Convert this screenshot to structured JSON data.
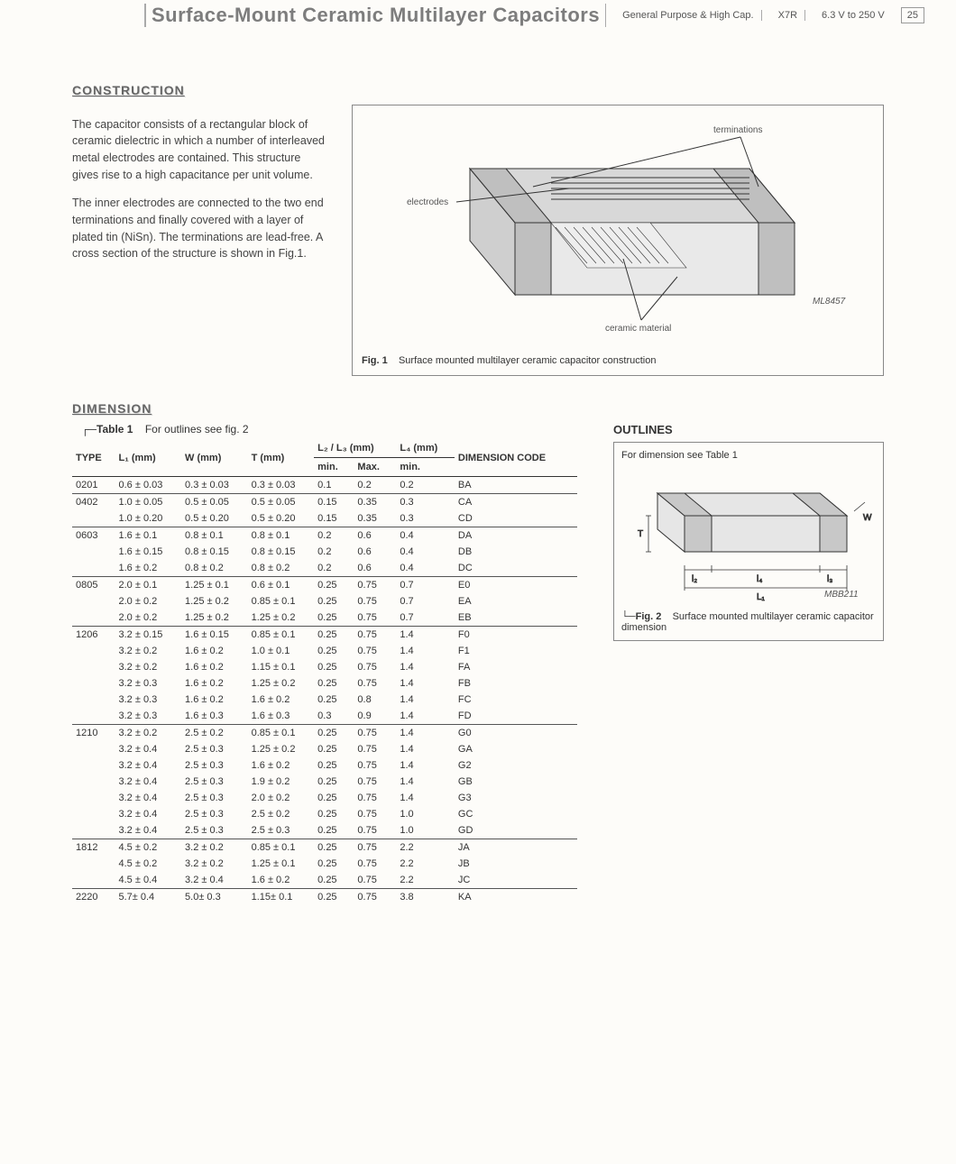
{
  "header": {
    "title": "Surface-Mount Ceramic Multilayer Capacitors",
    "category": "General Purpose & High Cap.",
    "dielectric": "X7R",
    "voltage": "6.3 V to 250 V",
    "page": "25"
  },
  "construction": {
    "heading": "CONSTRUCTION",
    "para1": "The capacitor consists of a rectangular block of ceramic dielectric in which a number of interleaved metal electrodes are contained. This structure gives rise to a high capacitance per unit volume.",
    "para2": "The inner electrodes are connected to the two end terminations and finally covered with a layer of plated tin (NiSn). The terminations are lead-free. A cross section of the structure is shown in Fig.1.",
    "fig_label": "Fig. 1",
    "fig_caption": "Surface mounted multilayer ceramic capacitor construction",
    "lbl_terminations": "terminations",
    "lbl_electrodes": "electrodes",
    "lbl_ceramic": "ceramic material",
    "code": "ML8457"
  },
  "dimension": {
    "heading": "DIMENSION",
    "table_caption_label": "Table 1",
    "table_caption_text": "For outlines see fig. 2",
    "outlines_heading": "OUTLINES",
    "fig2_note": "For dimension see Table 1",
    "fig2_label": "Fig. 2",
    "fig2_caption": "Surface mounted multilayer ceramic capacitor dimension",
    "fig2_code": "MBB211",
    "columns": {
      "type": "TYPE",
      "l1": "L₁ (mm)",
      "w": "W (mm)",
      "t": "T (mm)",
      "l23": "L₂ / L₃ (mm)",
      "l23_min": "min.",
      "l23_max": "Max.",
      "l4": "L₄ (mm)",
      "l4_min": "min.",
      "code": "DIMENSION CODE"
    },
    "rows": [
      {
        "type": "0201",
        "l1": "0.6 ± 0.03",
        "w": "0.3 ± 0.03",
        "t": "0.3 ± 0.03",
        "min": "0.1",
        "max": "0.2",
        "l4": "0.2",
        "code": "BA",
        "group": true
      },
      {
        "type": "0402",
        "l1": "1.0 ± 0.05",
        "w": "0.5 ± 0.05",
        "t": "0.5 ± 0.05",
        "min": "0.15",
        "max": "0.35",
        "l4": "0.3",
        "code": "CA",
        "group": true
      },
      {
        "type": "",
        "l1": "1.0 ± 0.20",
        "w": "0.5 ± 0.20",
        "t": "0.5 ± 0.20",
        "min": "0.15",
        "max": "0.35",
        "l4": "0.3",
        "code": "CD"
      },
      {
        "type": "0603",
        "l1": "1.6 ± 0.1",
        "w": "0.8 ± 0.1",
        "t": "0.8 ± 0.1",
        "min": "0.2",
        "max": "0.6",
        "l4": "0.4",
        "code": "DA",
        "group": true
      },
      {
        "type": "",
        "l1": "1.6 ± 0.15",
        "w": "0.8 ± 0.15",
        "t": "0.8 ± 0.15",
        "min": "0.2",
        "max": "0.6",
        "l4": "0.4",
        "code": "DB"
      },
      {
        "type": "",
        "l1": "1.6 ± 0.2",
        "w": "0.8 ± 0.2",
        "t": "0.8 ± 0.2",
        "min": "0.2",
        "max": "0.6",
        "l4": "0.4",
        "code": "DC"
      },
      {
        "type": "0805",
        "l1": "2.0 ± 0.1",
        "w": "1.25 ± 0.1",
        "t": "0.6 ± 0.1",
        "min": "0.25",
        "max": "0.75",
        "l4": "0.7",
        "code": "E0",
        "group": true
      },
      {
        "type": "",
        "l1": "2.0 ± 0.2",
        "w": "1.25 ± 0.2",
        "t": "0.85 ± 0.1",
        "min": "0.25",
        "max": "0.75",
        "l4": "0.7",
        "code": "EA"
      },
      {
        "type": "",
        "l1": "2.0 ± 0.2",
        "w": "1.25 ± 0.2",
        "t": "1.25 ± 0.2",
        "min": "0.25",
        "max": "0.75",
        "l4": "0.7",
        "code": "EB"
      },
      {
        "type": "1206",
        "l1": "3.2 ± 0.15",
        "w": "1.6 ± 0.15",
        "t": "0.85 ± 0.1",
        "min": "0.25",
        "max": "0.75",
        "l4": "1.4",
        "code": "F0",
        "group": true
      },
      {
        "type": "",
        "l1": "3.2 ± 0.2",
        "w": "1.6 ± 0.2",
        "t": "1.0 ± 0.1",
        "min": "0.25",
        "max": "0.75",
        "l4": "1.4",
        "code": "F1"
      },
      {
        "type": "",
        "l1": "3.2 ± 0.2",
        "w": "1.6 ± 0.2",
        "t": "1.15 ± 0.1",
        "min": "0.25",
        "max": "0.75",
        "l4": "1.4",
        "code": "FA"
      },
      {
        "type": "",
        "l1": "3.2 ± 0.3",
        "w": "1.6 ± 0.2",
        "t": "1.25 ± 0.2",
        "min": "0.25",
        "max": "0.75",
        "l4": "1.4",
        "code": "FB"
      },
      {
        "type": "",
        "l1": "3.2 ± 0.3",
        "w": "1.6 ± 0.2",
        "t": "1.6 ± 0.2",
        "min": "0.25",
        "max": "0.8",
        "l4": "1.4",
        "code": "FC"
      },
      {
        "type": "",
        "l1": "3.2 ± 0.3",
        "w": "1.6 ± 0.3",
        "t": "1.6 ± 0.3",
        "min": "0.3",
        "max": "0.9",
        "l4": "1.4",
        "code": "FD"
      },
      {
        "type": "1210",
        "l1": "3.2 ± 0.2",
        "w": "2.5 ± 0.2",
        "t": "0.85 ± 0.1",
        "min": "0.25",
        "max": "0.75",
        "l4": "1.4",
        "code": "G0",
        "group": true
      },
      {
        "type": "",
        "l1": "3.2 ± 0.4",
        "w": "2.5 ± 0.3",
        "t": "1.25 ± 0.2",
        "min": "0.25",
        "max": "0.75",
        "l4": "1.4",
        "code": "GA"
      },
      {
        "type": "",
        "l1": "3.2 ± 0.4",
        "w": "2.5 ± 0.3",
        "t": "1.6 ± 0.2",
        "min": "0.25",
        "max": "0.75",
        "l4": "1.4",
        "code": "G2"
      },
      {
        "type": "",
        "l1": "3.2 ± 0.4",
        "w": "2.5 ± 0.3",
        "t": "1.9 ± 0.2",
        "min": "0.25",
        "max": "0.75",
        "l4": "1.4",
        "code": "GB"
      },
      {
        "type": "",
        "l1": "3.2 ± 0.4",
        "w": "2.5 ± 0.3",
        "t": "2.0 ± 0.2",
        "min": "0.25",
        "max": "0.75",
        "l4": "1.4",
        "code": "G3"
      },
      {
        "type": "",
        "l1": "3.2 ± 0.4",
        "w": "2.5 ± 0.3",
        "t": "2.5 ± 0.2",
        "min": "0.25",
        "max": "0.75",
        "l4": "1.0",
        "code": "GC"
      },
      {
        "type": "",
        "l1": "3.2 ± 0.4",
        "w": "2.5 ± 0.3",
        "t": "2.5 ± 0.3",
        "min": "0.25",
        "max": "0.75",
        "l4": "1.0",
        "code": "GD"
      },
      {
        "type": "1812",
        "l1": "4.5 ± 0.2",
        "w": "3.2 ± 0.2",
        "t": "0.85 ± 0.1",
        "min": "0.25",
        "max": "0.75",
        "l4": "2.2",
        "code": "JA",
        "group": true
      },
      {
        "type": "",
        "l1": "4.5 ± 0.2",
        "w": "3.2 ± 0.2",
        "t": "1.25 ± 0.1",
        "min": "0.25",
        "max": "0.75",
        "l4": "2.2",
        "code": "JB"
      },
      {
        "type": "",
        "l1": "4.5 ± 0.4",
        "w": "3.2 ± 0.4",
        "t": "1.6 ± 0.2",
        "min": "0.25",
        "max": "0.75",
        "l4": "2.2",
        "code": "JC"
      },
      {
        "type": "2220",
        "l1": "5.7± 0.4",
        "w": "5.0± 0.3",
        "t": "1.15± 0.1",
        "min": "0.25",
        "max": "0.75",
        "l4": "3.8",
        "code": "KA",
        "group": true
      }
    ]
  }
}
